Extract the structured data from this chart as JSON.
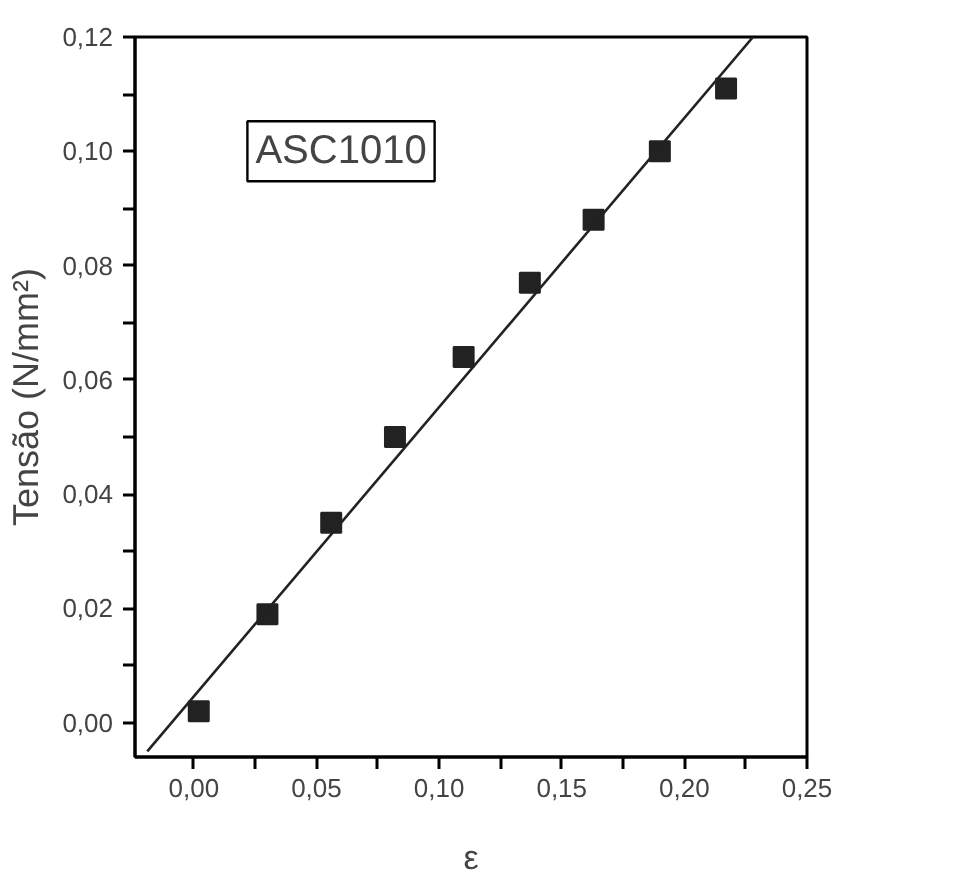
{
  "chart_data": {
    "type": "scatter",
    "xlabel": "ε",
    "ylabel": "Tensão (N/mm²)",
    "annotations": [
      "ASC1010"
    ],
    "series": [
      {
        "color": "#222222",
        "marker": "square",
        "x": [
          0.002,
          0.03,
          0.056,
          0.082,
          0.11,
          0.137,
          0.163,
          0.19,
          0.217
        ],
        "values": [
          0.002,
          0.019,
          0.035,
          0.05,
          0.064,
          0.077,
          0.088,
          0.1,
          0.111
        ]
      },
      {
        "type": "line",
        "color": "#222222",
        "line_style": "solid",
        "marker": "none",
        "x": [
          -0.019,
          0.228
        ],
        "values": [
          -0.005,
          0.12
        ]
      }
    ],
    "xlim": [
      -0.024,
      0.25
    ],
    "ylim": [
      -0.006,
      0.12
    ],
    "xticks": [
      {
        "value": 0,
        "label": "0,00"
      },
      {
        "value": 0.025,
        "label": null
      },
      {
        "value": 0.05,
        "label": "0,05"
      },
      {
        "value": 0.075,
        "label": null
      },
      {
        "value": 0.1,
        "label": "0,10"
      },
      {
        "value": 0.125,
        "label": null
      },
      {
        "value": 0.15,
        "label": "0,15"
      },
      {
        "value": 0.175,
        "label": null
      },
      {
        "value": 0.2,
        "label": "0,20"
      },
      {
        "value": 0.225,
        "label": null
      },
      {
        "value": 0.25,
        "label": "0,25"
      }
    ],
    "yticks": [
      {
        "value": 0,
        "label": "0,00"
      },
      {
        "value": 0.01,
        "label": null
      },
      {
        "value": 0.02,
        "label": "0,02"
      },
      {
        "value": 0.03,
        "label": null
      },
      {
        "value": 0.04,
        "label": "0,04"
      },
      {
        "value": 0.05,
        "label": null
      },
      {
        "value": 0.06,
        "label": "0,06"
      },
      {
        "value": 0.07,
        "label": null
      },
      {
        "value": 0.08,
        "label": "0,08"
      },
      {
        "value": 0.09,
        "label": null
      },
      {
        "value": 0.1,
        "label": "0,10"
      },
      {
        "value": 0.11,
        "label": null
      },
      {
        "value": 0.12,
        "label": "0,12"
      }
    ],
    "grid": false
  }
}
